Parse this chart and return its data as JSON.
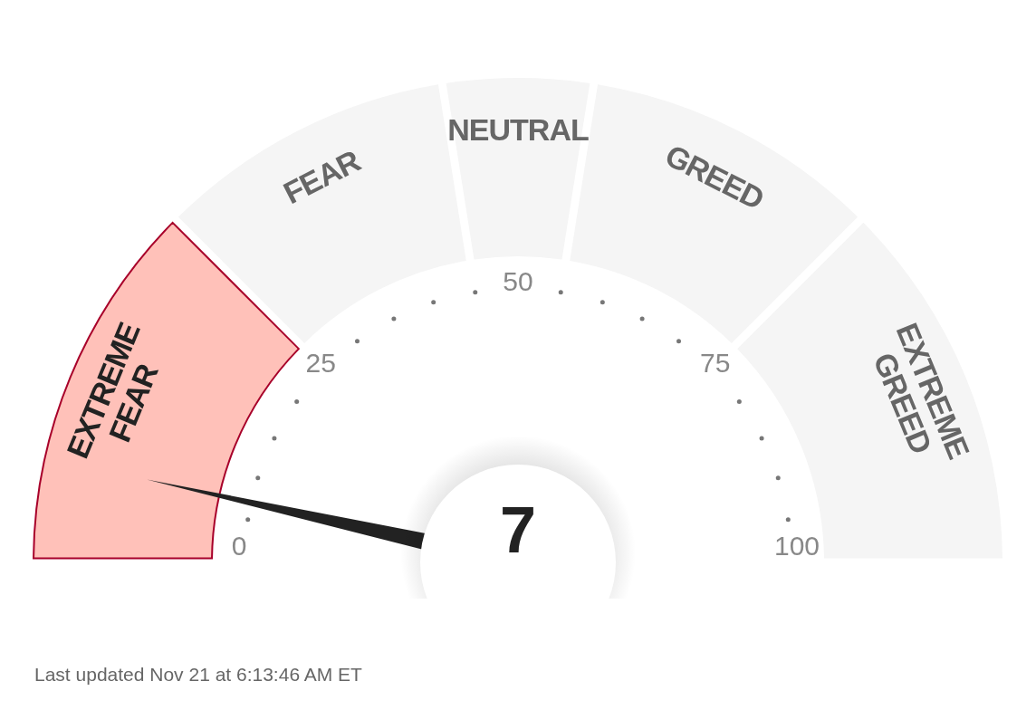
{
  "chart_data": {
    "type": "donut",
    "categories": [
      "EXTREME FEAR",
      "FEAR",
      "NEUTRAL",
      "GREED",
      "EXTREME GREED"
    ],
    "values": [
      25,
      20,
      10,
      20,
      25
    ],
    "colors": [
      "#ffc1b9",
      "#f5f5f5",
      "#f5f5f5",
      "#f5f5f5",
      "#f5f5f5"
    ],
    "needle": "EXTREME FEAR",
    "annotations": [
      "0",
      "25",
      "50",
      "75",
      "100",
      "7",
      "Last updated Nov 21 at 6:13:46 AM ET"
    ]
  }
}
